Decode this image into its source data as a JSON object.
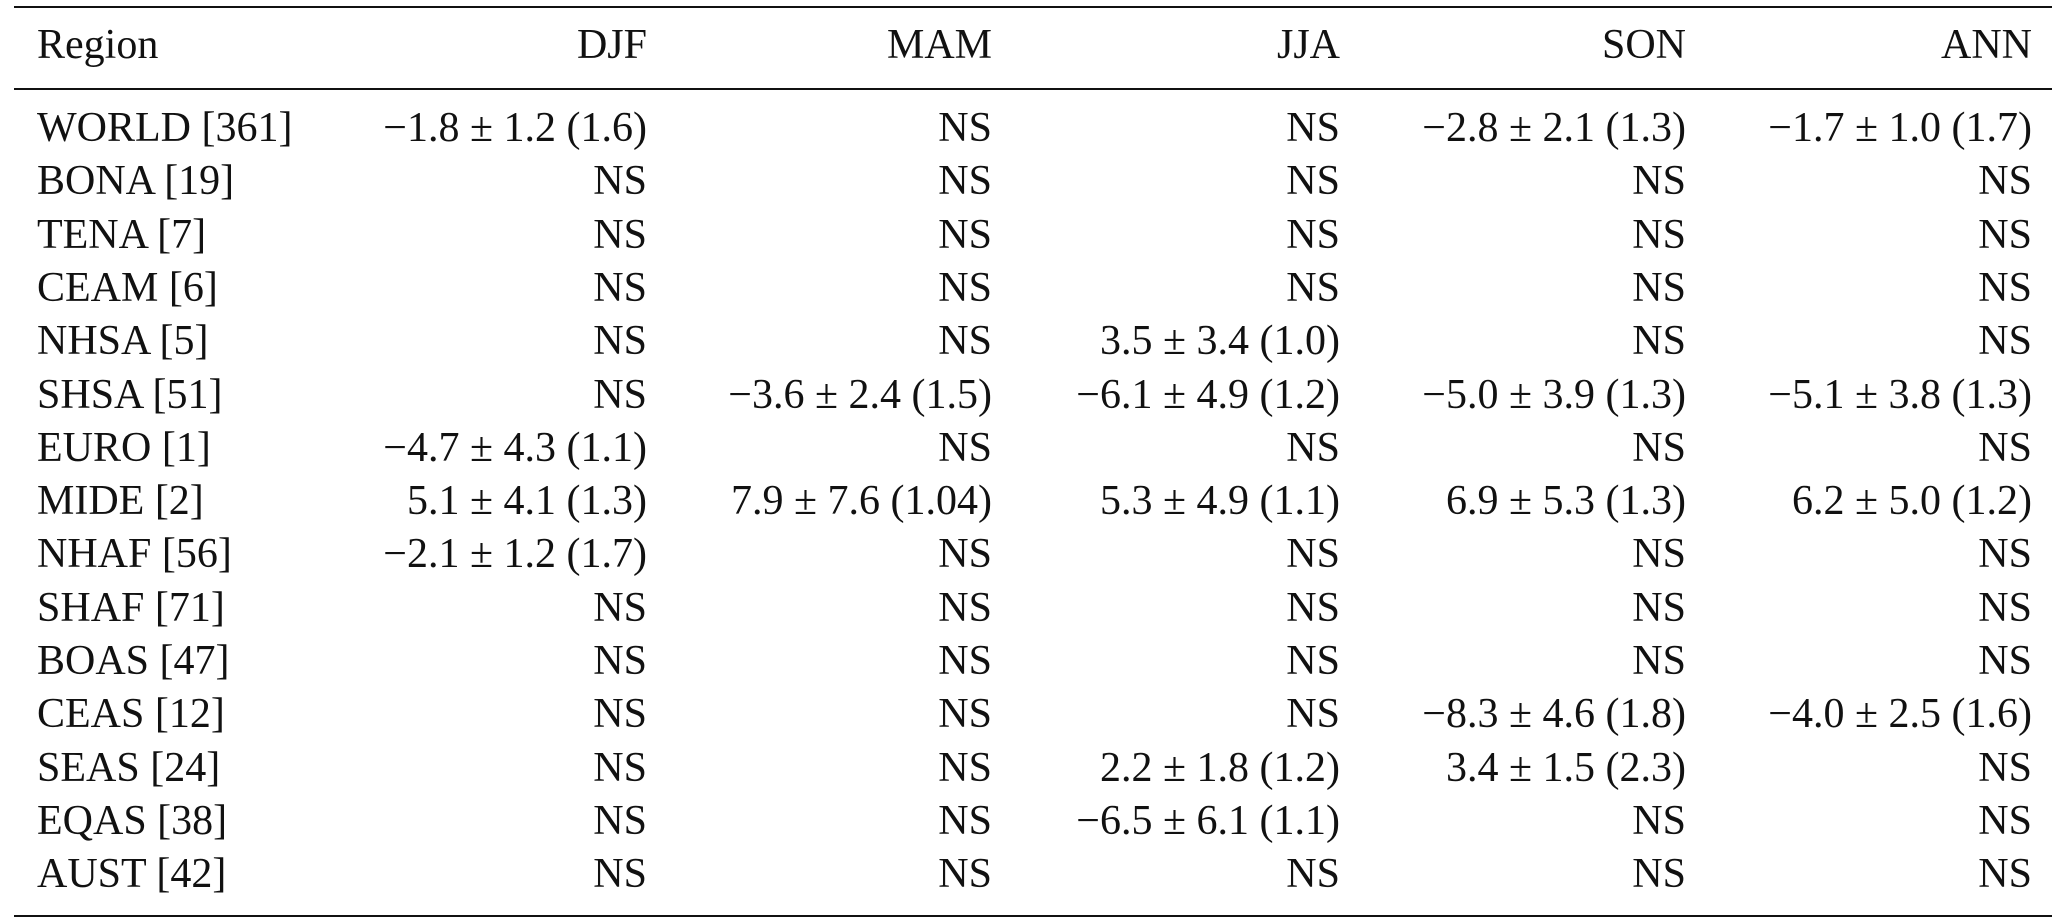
{
  "table": {
    "header": [
      "Region",
      "DJF",
      "MAM",
      "JJA",
      "SON",
      "ANN"
    ],
    "rows": [
      [
        "WORLD [361]",
        "−1.8 ± 1.2 (1.6)",
        "NS",
        "NS",
        "−2.8 ± 2.1 (1.3)",
        "−1.7 ± 1.0 (1.7)"
      ],
      [
        "BONA [19]",
        "NS",
        "NS",
        "NS",
        "NS",
        "NS"
      ],
      [
        "TENA [7]",
        "NS",
        "NS",
        "NS",
        "NS",
        "NS"
      ],
      [
        "CEAM [6]",
        "NS",
        "NS",
        "NS",
        "NS",
        "NS"
      ],
      [
        "NHSA [5]",
        "NS",
        "NS",
        "3.5 ± 3.4 (1.0)",
        "NS",
        "NS"
      ],
      [
        "SHSA [51]",
        "NS",
        "−3.6 ± 2.4 (1.5)",
        "−6.1 ± 4.9 (1.2)",
        "−5.0 ± 3.9 (1.3)",
        "−5.1 ± 3.8 (1.3)"
      ],
      [
        "EURO [1]",
        "−4.7 ± 4.3 (1.1)",
        "NS",
        "NS",
        "NS",
        "NS"
      ],
      [
        "MIDE [2]",
        "5.1 ± 4.1 (1.3)",
        "7.9 ± 7.6 (1.04)",
        "5.3 ± 4.9 (1.1)",
        "6.9 ± 5.3 (1.3)",
        "6.2 ± 5.0 (1.2)"
      ],
      [
        "NHAF [56]",
        "−2.1 ± 1.2 (1.7)",
        "NS",
        "NS",
        "NS",
        "NS"
      ],
      [
        "SHAF [71]",
        "NS",
        "NS",
        "NS",
        "NS",
        "NS"
      ],
      [
        "BOAS [47]",
        "NS",
        "NS",
        "NS",
        "NS",
        "NS"
      ],
      [
        "CEAS [12]",
        "NS",
        "NS",
        "NS",
        "−8.3 ± 4.6 (1.8)",
        "−4.0 ± 2.5 (1.6)"
      ],
      [
        "SEAS [24]",
        "NS",
        "NS",
        "2.2 ± 1.8 (1.2)",
        "3.4 ± 1.5 (2.3)",
        "NS"
      ],
      [
        "EQAS [38]",
        "NS",
        "NS",
        "−6.5 ± 6.1 (1.1)",
        "NS",
        "NS"
      ],
      [
        "AUST [42]",
        "NS",
        "NS",
        "NS",
        "NS",
        "NS"
      ]
    ]
  }
}
